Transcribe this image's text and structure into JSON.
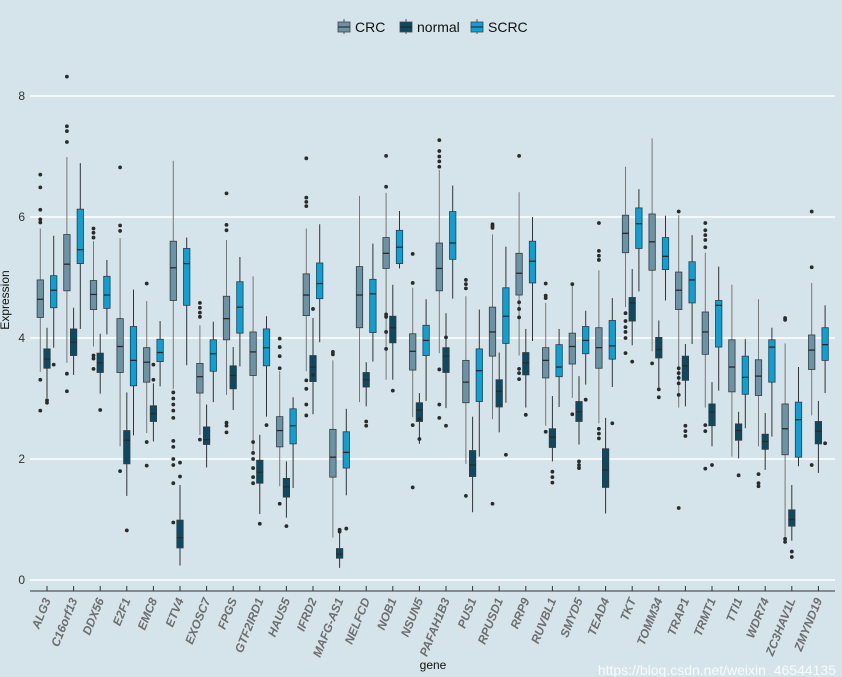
{
  "chart_data": {
    "type": "boxplot",
    "title": "",
    "xlabel": "gene",
    "ylabel": "Expression",
    "ylim": [
      0,
      8
    ],
    "yticks": [
      0,
      2,
      4,
      6,
      8
    ],
    "grid": "horizontal",
    "legend_position": "top",
    "colors": {
      "CRC": "#6b93a6",
      "normal": "#0b4a62",
      "SCRC": "#0aa1d9"
    },
    "categories": [
      "ALG3",
      "C16orf13",
      "DDX56",
      "E2F1",
      "EMC8",
      "ETV4",
      "EXOSC7",
      "FPGS",
      "GTF2IRD1",
      "HAUS5",
      "IFRD2",
      "MAFG-AS1",
      "NELFCD",
      "NOB1",
      "NSUN5",
      "PAFAH1B3",
      "PUS1",
      "RPUSD1",
      "RRP9",
      "RUVBL1",
      "SMYD5",
      "TEAD4",
      "TKT",
      "TOMM34",
      "TRAP1",
      "TRMT1",
      "TTI1",
      "WDR74",
      "ZC3HAV1L",
      "ZMYND19"
    ],
    "series": [
      {
        "name": "CRC",
        "stats_format": "[whisker_low, q1, median, q3, whisker_high]",
        "stats": [
          [
            3.44,
            4.34,
            4.64,
            4.96,
            5.81
          ],
          [
            3.59,
            4.78,
            5.22,
            5.71,
            6.99
          ],
          [
            3.86,
            4.47,
            4.72,
            4.95,
            5.6
          ],
          [
            2.21,
            3.43,
            3.86,
            4.32,
            5.65
          ],
          [
            2.43,
            3.27,
            3.6,
            3.84,
            4.61
          ],
          [
            3.16,
            4.62,
            5.16,
            5.6,
            6.93
          ],
          [
            2.4,
            3.09,
            3.36,
            3.58,
            4.21
          ],
          [
            3.06,
            3.97,
            4.32,
            4.69,
            5.62
          ],
          [
            2.14,
            3.38,
            3.77,
            4.1,
            5.02
          ],
          [
            1.55,
            2.2,
            2.47,
            2.7,
            3.45
          ],
          [
            3.45,
            4.37,
            4.71,
            5.06,
            5.81
          ],
          [
            0.7,
            1.7,
            2.03,
            2.49,
            3.63
          ],
          [
            2.94,
            4.17,
            4.71,
            5.18,
            6.35
          ],
          [
            3.31,
            5.15,
            5.4,
            5.66,
            6.4
          ],
          [
            2.69,
            3.47,
            3.78,
            4.07,
            4.83
          ],
          [
            3.75,
            4.78,
            5.15,
            5.57,
            6.78
          ],
          [
            1.92,
            2.93,
            3.27,
            3.63,
            4.69
          ],
          [
            2.66,
            3.7,
            4.1,
            4.51,
            5.71
          ],
          [
            3.71,
            4.71,
            5.07,
            5.4,
            6.41
          ],
          [
            2.55,
            3.34,
            3.63,
            3.84,
            4.58
          ],
          [
            3.01,
            3.57,
            3.86,
            4.08,
            4.87
          ],
          [
            2.59,
            3.5,
            3.84,
            4.17,
            5.12
          ],
          [
            4.51,
            5.41,
            5.73,
            6.03,
            6.83
          ],
          [
            3.78,
            5.12,
            5.59,
            6.05,
            7.3
          ],
          [
            2.85,
            4.47,
            4.79,
            5.09,
            6.03
          ],
          [
            2.85,
            3.73,
            4.1,
            4.43,
            5.41
          ],
          [
            2.04,
            3.11,
            3.52,
            3.97,
            4.88
          ],
          [
            2.21,
            3.05,
            3.37,
            3.64,
            4.64
          ],
          [
            0.7,
            2.07,
            2.5,
            2.91,
            3.91
          ],
          [
            2.72,
            3.48,
            3.8,
            4.05,
            4.91
          ]
        ],
        "outliers": [
          [
            6.7,
            6.49,
            6.12,
            5.96,
            5.91,
            3.31,
            2.8
          ],
          [
            8.32,
            7.5,
            7.42,
            7.24,
            3.41,
            3.12
          ],
          [
            5.81,
            5.74,
            5.66,
            3.71,
            3.66,
            3.49
          ],
          [
            6.82,
            5.86,
            5.77,
            1.8
          ],
          [
            4.9,
            2.28,
            1.89
          ],
          [
            3.1,
            3.0,
            2.9,
            2.8,
            2.68,
            2.3,
            2.2,
            2.0,
            1.9,
            1.6,
            0.95
          ],
          [
            4.58,
            4.5,
            4.42,
            4.35,
            2.32
          ],
          [
            6.39,
            5.87,
            5.78,
            2.6,
            2.55,
            2.44
          ],
          [
            2.28,
            2.1,
            2.0,
            1.85,
            1.7,
            1.6
          ],
          [
            3.99,
            3.85,
            3.7,
            3.5,
            1.26
          ],
          [
            6.97,
            6.32,
            6.25,
            6.18,
            3.3,
            3.16,
            2.9,
            2.72
          ],
          [
            3.77,
            3.73
          ],
          [],
          [
            7.01,
            6.5,
            4.39,
            4.35,
            4.1,
            3.82
          ],
          [
            5.39,
            4.91,
            2.56,
            1.53
          ],
          [
            7.27,
            7.09,
            7.0,
            6.92,
            6.83,
            3.48,
            2.9,
            2.68
          ],
          [
            4.96,
            4.89,
            4.82,
            1.39
          ],
          [
            5.88,
            5.85,
            5.82,
            1.26
          ],
          [
            7.01,
            4.59,
            4.48,
            4.34,
            3.49,
            3.42,
            3.32
          ],
          [
            4.9,
            4.7,
            4.66,
            2.45
          ],
          [
            4.89,
            2.74
          ],
          [
            5.9,
            5.44,
            5.36,
            5.29,
            2.5,
            2.42,
            2.34
          ],
          [
            4.41,
            4.28,
            4.18,
            4.1,
            4.0,
            3.75
          ],
          [
            3.58
          ],
          [
            6.09,
            3.5,
            3.42,
            3.34,
            3.25,
            3.06,
            1.19
          ],
          [
            5.9,
            5.78,
            5.7,
            5.62,
            5.5,
            2.56,
            2.46,
            1.84
          ],
          [],
          [
            1.75,
            1.6,
            1.55
          ],
          [
            4.33,
            4.3,
            0.68,
            0.63
          ],
          [
            6.09,
            5.17,
            1.9
          ]
        ]
      },
      {
        "name": "normal",
        "stats_format": "[whisker_low, q1, median, q3, whisker_high]",
        "stats": [
          [
            3.01,
            3.5,
            3.65,
            3.82,
            4.17
          ],
          [
            3.39,
            3.71,
            3.93,
            4.15,
            4.5
          ],
          [
            3.08,
            3.43,
            3.59,
            3.75,
            4.07
          ],
          [
            1.39,
            1.92,
            2.31,
            2.47,
            3.1
          ],
          [
            2.29,
            2.62,
            2.75,
            2.88,
            3.25
          ],
          [
            0.24,
            0.53,
            0.7,
            0.99,
            1.57
          ],
          [
            1.86,
            2.24,
            2.32,
            2.53,
            2.9
          ],
          [
            2.81,
            3.16,
            3.38,
            3.54,
            3.85
          ],
          [
            1.09,
            1.6,
            1.78,
            1.98,
            2.4
          ],
          [
            1.03,
            1.37,
            1.54,
            1.68,
            1.96
          ],
          [
            2.74,
            3.28,
            3.52,
            3.71,
            4.33
          ],
          [
            0.2,
            0.36,
            0.43,
            0.52,
            0.77
          ],
          [
            2.87,
            3.19,
            3.31,
            3.43,
            3.6
          ],
          [
            3.31,
            3.92,
            4.17,
            4.36,
            4.88
          ],
          [
            2.25,
            2.62,
            2.81,
            2.93,
            3.09
          ],
          [
            2.84,
            3.43,
            3.7,
            3.84,
            4.41
          ],
          [
            1.12,
            1.71,
            1.9,
            2.14,
            2.7
          ],
          [
            2.44,
            2.86,
            3.12,
            3.31,
            3.76
          ],
          [
            2.85,
            3.39,
            3.59,
            3.76,
            4.15
          ],
          [
            1.96,
            2.19,
            2.36,
            2.5,
            3.04
          ],
          [
            2.24,
            2.62,
            2.78,
            2.95,
            3.37
          ],
          [
            1.1,
            1.53,
            1.82,
            2.17,
            2.68
          ],
          [
            3.88,
            4.28,
            4.58,
            4.67,
            5.14
          ],
          [
            3.16,
            3.67,
            3.81,
            4.01,
            4.29
          ],
          [
            2.87,
            3.3,
            3.54,
            3.7,
            3.9
          ],
          [
            2.21,
            2.55,
            2.78,
            2.91,
            3.27
          ],
          [
            2.01,
            2.31,
            2.47,
            2.58,
            2.78
          ],
          [
            1.82,
            2.16,
            2.29,
            2.41,
            2.76
          ],
          [
            0.65,
            0.89,
            1.0,
            1.16,
            1.57
          ],
          [
            1.77,
            2.25,
            2.46,
            2.62,
            2.96
          ]
        ],
        "outliers": [
          [
            2.97,
            2.93
          ],
          [],
          [
            2.81
          ],
          [
            0.82
          ],
          [
            3.56,
            3.31
          ],
          [
            1.94,
            1.71
          ],
          [],
          [],
          [
            0.93
          ],
          [
            0.89
          ],
          [
            4.48,
            3.39
          ],
          [
            0.83,
            0.8
          ],
          [
            2.62,
            2.55
          ],
          [
            3.13
          ],
          [
            2.66,
            2.33
          ],
          [
            4.01,
            2.55
          ],
          [],
          [],
          [
            2.73
          ],
          [
            1.79,
            1.7,
            1.61
          ],
          [
            1.96,
            1.9,
            1.85
          ],
          [],
          [
            3.61
          ],
          [
            3.15,
            3.02
          ],
          [
            2.55,
            2.46,
            2.38
          ],
          [
            1.9
          ],
          [
            1.73
          ],
          [],
          [
            0.47,
            0.38
          ],
          []
        ]
      },
      {
        "name": "SCRC",
        "stats_format": "[whisker_low, q1, median, q3, whisker_high]",
        "stats": [
          [
            3.84,
            4.5,
            4.79,
            5.03,
            5.69
          ],
          [
            4.15,
            5.23,
            5.46,
            6.13,
            6.89
          ],
          [
            4.06,
            4.49,
            4.71,
            5.02,
            5.29
          ],
          [
            2.39,
            3.21,
            3.63,
            4.19,
            4.8
          ],
          [
            3.2,
            3.61,
            3.76,
            3.98,
            4.28
          ],
          [
            3.55,
            4.54,
            5.23,
            5.48,
            5.66
          ],
          [
            2.94,
            3.45,
            3.74,
            3.97,
            4.27
          ],
          [
            3.53,
            4.08,
            4.51,
            4.93,
            5.34
          ],
          [
            2.7,
            3.54,
            3.84,
            4.15,
            4.36
          ],
          [
            1.52,
            2.25,
            2.55,
            2.83,
            3.02
          ],
          [
            3.93,
            4.65,
            4.9,
            5.24,
            5.88
          ],
          [
            1.4,
            1.85,
            2.11,
            2.45,
            2.83
          ],
          [
            3.61,
            4.09,
            4.73,
            4.97,
            5.56
          ],
          [
            5.15,
            5.23,
            5.5,
            5.78,
            6.1
          ],
          [
            2.96,
            3.71,
            3.96,
            4.21,
            4.64
          ],
          [
            4.65,
            5.3,
            5.57,
            6.09,
            6.52
          ],
          [
            2.04,
            2.95,
            3.46,
            3.82,
            4.47
          ],
          [
            2.93,
            3.91,
            4.36,
            4.83,
            5.51
          ],
          [
            3.95,
            4.91,
            5.27,
            5.6,
            6.0
          ],
          [
            2.86,
            3.36,
            3.52,
            3.89,
            4.15
          ],
          [
            3.23,
            3.74,
            3.96,
            4.19,
            4.45
          ],
          [
            3.19,
            3.65,
            3.87,
            4.29,
            4.66
          ],
          [
            4.77,
            5.48,
            5.89,
            6.15,
            6.46
          ],
          [
            4.62,
            5.13,
            5.35,
            5.66,
            6.02
          ],
          [
            3.9,
            4.58,
            4.96,
            5.26,
            5.7
          ],
          [
            3.13,
            3.85,
            4.54,
            4.62,
            5.18
          ],
          [
            2.51,
            3.07,
            3.35,
            3.7,
            3.98
          ],
          [
            2.37,
            3.27,
            3.85,
            3.97,
            4.17
          ],
          [
            1.88,
            2.03,
            2.65,
            2.94,
            3.52
          ],
          [
            3.09,
            3.63,
            3.89,
            4.17,
            4.54
          ]
        ],
        "outliers": [
          [
            3.56
          ],
          [],
          [],
          [],
          [],
          [],
          [],
          [],
          [
            2.56
          ],
          [],
          [],
          [
            0.85
          ],
          [],
          [],
          [],
          [],
          [],
          [
            2.07
          ],
          [],
          [],
          [
            2.98
          ],
          [
            2.59
          ],
          [],
          [],
          [],
          [],
          [],
          [],
          [],
          [
            2.26
          ]
        ]
      }
    ]
  },
  "legend": {
    "items": [
      "CRC",
      "normal",
      "SCRC"
    ]
  },
  "watermark": "https://blog.csdn.net/weixin_46544135"
}
